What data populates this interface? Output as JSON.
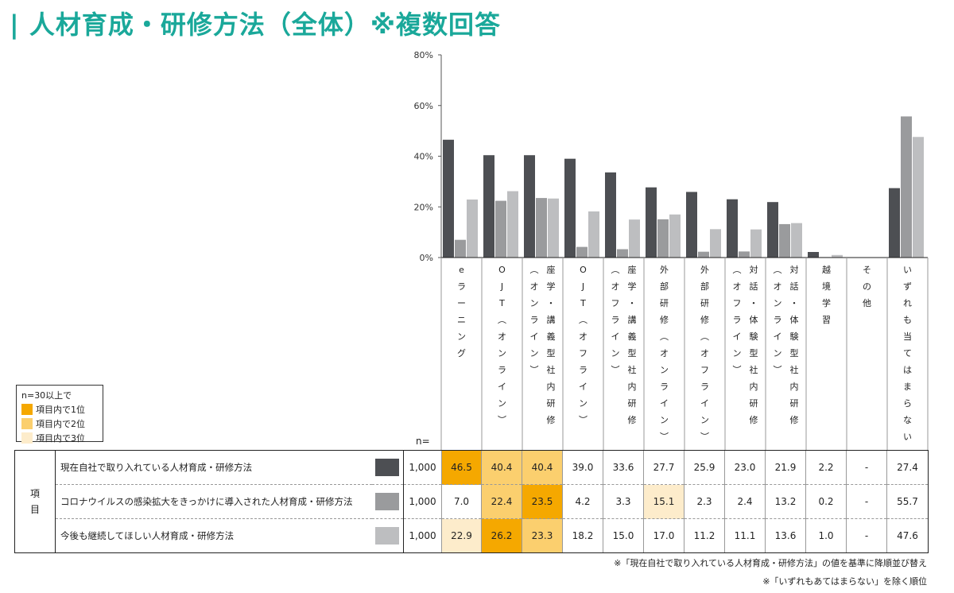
{
  "title": "| 人材育成・研修方法（全体）※複数回答",
  "legend": {
    "caption": "n=30以上で",
    "items": [
      {
        "label": "項目内で1位",
        "color": "#f5a800"
      },
      {
        "label": "項目内で2位",
        "color": "#fbcf6e"
      },
      {
        "label": "項目内で3位",
        "color": "#fdeccb"
      }
    ]
  },
  "n_label": "n=",
  "item_header": "項目",
  "footnotes": [
    "※「現在自社で取り入れている人材育成・研修方法」の値を基準に降順並び替え",
    "※「いずれもあてはまらない」を除く順位"
  ],
  "chart_data": {
    "type": "bar",
    "ylim": [
      0,
      80
    ],
    "yticks": [
      "0%",
      "20%",
      "40%",
      "60%",
      "80%"
    ],
    "categories": [
      "eラーニング",
      "OJT（オンライン）",
      "座学・講義型社内研修（オンライン）",
      "OJT（オフライン）",
      "座学・講義型社内研修（オフライン）",
      "外部研修（オンライン）",
      "外部研修（オフライン）",
      "対話・体験型社内研修（オフライン）",
      "対話・体験型社内研修（オンライン）",
      "越境学習",
      "その他",
      "いずれも当てはまらない"
    ],
    "category_columns": [
      [
        [
          "e",
          "ラ",
          "ー",
          "ニ",
          "ン",
          "グ"
        ]
      ],
      [
        [
          "O",
          "J",
          "T",
          "︵",
          "オ",
          "ン",
          "ラ",
          "イ",
          "ン",
          "︶"
        ]
      ],
      [
        [
          "︵",
          "オ",
          "ン",
          "ラ",
          "イ",
          "ン",
          "︶"
        ],
        [
          "座",
          "学",
          "・",
          "講",
          "義",
          "型",
          "社",
          "内",
          "研",
          "修"
        ]
      ],
      [
        [
          "O",
          "J",
          "T",
          "︵",
          "オ",
          "フ",
          "ラ",
          "イ",
          "ン",
          "︶"
        ]
      ],
      [
        [
          "︵",
          "オ",
          "フ",
          "ラ",
          "イ",
          "ン",
          "︶"
        ],
        [
          "座",
          "学",
          "・",
          "講",
          "義",
          "型",
          "社",
          "内",
          "研",
          "修"
        ]
      ],
      [
        [
          "外",
          "部",
          "研",
          "修",
          "︵",
          "オ",
          "ン",
          "ラ",
          "イ",
          "ン",
          "︶"
        ]
      ],
      [
        [
          "外",
          "部",
          "研",
          "修",
          "︵",
          "オ",
          "フ",
          "ラ",
          "イ",
          "ン",
          "︶"
        ]
      ],
      [
        [
          "︵",
          "オ",
          "フ",
          "ラ",
          "イ",
          "ン",
          "︶"
        ],
        [
          "対",
          "話",
          "・",
          "体",
          "験",
          "型",
          "社",
          "内",
          "研",
          "修"
        ]
      ],
      [
        [
          "︵",
          "オ",
          "ン",
          "ラ",
          "イ",
          "ン",
          "︶"
        ],
        [
          "対",
          "話",
          "・",
          "体",
          "験",
          "型",
          "社",
          "内",
          "研",
          "修"
        ]
      ],
      [
        [
          "越",
          "境",
          "学",
          "習"
        ]
      ],
      [
        [
          "そ",
          "の",
          "他"
        ]
      ],
      [
        [
          "い",
          "ず",
          "れ",
          "も",
          "当",
          "て",
          "は",
          "ま",
          "ら",
          "な",
          "い"
        ]
      ]
    ],
    "series": [
      {
        "name": "現在自社で取り入れている人材育成・研修方法",
        "color": "#4d4f53",
        "n": "1,000",
        "values": [
          46.5,
          40.4,
          40.4,
          39.0,
          33.6,
          27.7,
          25.9,
          23.0,
          21.9,
          2.2,
          null,
          27.4
        ],
        "labels": [
          "46.5",
          "40.4",
          "40.4",
          "39.0",
          "33.6",
          "27.7",
          "25.9",
          "23.0",
          "21.9",
          "2.2",
          "-",
          "27.4"
        ],
        "rank": [
          1,
          2,
          2,
          0,
          0,
          0,
          0,
          0,
          0,
          0,
          0,
          0
        ]
      },
      {
        "name": "コロナウイルスの感染拡大をきっかけに導入された人材育成・研修方法",
        "color": "#9a9b9d",
        "n": "1,000",
        "values": [
          7.0,
          22.4,
          23.5,
          4.2,
          3.3,
          15.1,
          2.3,
          2.4,
          13.2,
          0.2,
          null,
          55.7
        ],
        "labels": [
          "7.0",
          "22.4",
          "23.5",
          "4.2",
          "3.3",
          "15.1",
          "2.3",
          "2.4",
          "13.2",
          "0.2",
          "-",
          "55.7"
        ],
        "rank": [
          0,
          2,
          1,
          0,
          0,
          3,
          0,
          0,
          0,
          0,
          0,
          0
        ]
      },
      {
        "name": "今後も継続してほしい人材育成・研修方法",
        "color": "#bdbec0",
        "n": "1,000",
        "values": [
          22.9,
          26.2,
          23.3,
          18.2,
          15.0,
          17.0,
          11.2,
          11.1,
          13.6,
          1.0,
          null,
          47.6
        ],
        "labels": [
          "22.9",
          "26.2",
          "23.3",
          "18.2",
          "15.0",
          "17.0",
          "11.2",
          "11.1",
          "13.6",
          "1.0",
          "-",
          "47.6"
        ],
        "rank": [
          3,
          1,
          2,
          0,
          0,
          0,
          0,
          0,
          0,
          0,
          0,
          0
        ]
      }
    ]
  }
}
